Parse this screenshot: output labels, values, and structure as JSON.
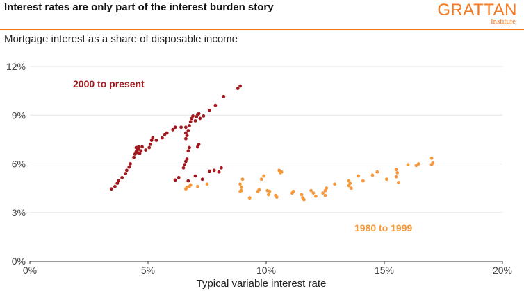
{
  "header": {
    "title": "Interest rates are only part of the interest burden story",
    "brand_name": "GRATTAN",
    "brand_sub": "Institute",
    "subtitle": "Mortgage interest as a share of disposable income"
  },
  "colors": {
    "accent": "#F47920",
    "recent": "#A1191F",
    "early": "#F6983C"
  },
  "chart_data": {
    "type": "scatter",
    "title": "Mortgage interest as a share of disposable income",
    "xlabel": "Typical variable interest rate",
    "ylabel": "",
    "xlim": [
      0,
      20
    ],
    "ylim": [
      0,
      12
    ],
    "xticks": [
      0,
      5,
      10,
      15,
      20
    ],
    "yticks": [
      0,
      3,
      6,
      9,
      12
    ],
    "xtick_labels": [
      "0%",
      "5%",
      "10%",
      "15%",
      "20%"
    ],
    "ytick_labels": [
      "0%",
      "3%",
      "6%",
      "9%",
      "12%"
    ],
    "grid": true,
    "series": [
      {
        "name": "2000 to present",
        "color": "#A1191F",
        "points": [
          [
            3.45,
            4.45
          ],
          [
            3.6,
            4.6
          ],
          [
            3.7,
            4.8
          ],
          [
            3.75,
            4.95
          ],
          [
            3.9,
            5.15
          ],
          [
            4.05,
            5.4
          ],
          [
            4.1,
            5.6
          ],
          [
            4.2,
            5.8
          ],
          [
            4.25,
            6.0
          ],
          [
            4.4,
            6.4
          ],
          [
            4.45,
            6.6
          ],
          [
            4.5,
            6.75
          ],
          [
            4.55,
            6.9
          ],
          [
            4.6,
            7.05
          ],
          [
            4.5,
            7.0
          ],
          [
            4.55,
            6.7
          ],
          [
            4.65,
            6.65
          ],
          [
            4.7,
            6.8
          ],
          [
            4.75,
            7.05
          ],
          [
            4.6,
            6.9
          ],
          [
            4.9,
            6.85
          ],
          [
            5.05,
            7.0
          ],
          [
            5.1,
            7.2
          ],
          [
            5.15,
            7.45
          ],
          [
            5.2,
            7.6
          ],
          [
            5.35,
            7.45
          ],
          [
            5.6,
            7.6
          ],
          [
            5.7,
            7.8
          ],
          [
            5.8,
            7.9
          ],
          [
            6.05,
            8.1
          ],
          [
            6.15,
            8.25
          ],
          [
            6.4,
            8.25
          ],
          [
            6.6,
            7.55
          ],
          [
            6.65,
            7.75
          ],
          [
            6.7,
            8.05
          ],
          [
            6.75,
            8.35
          ],
          [
            6.8,
            8.6
          ],
          [
            6.85,
            8.8
          ],
          [
            6.9,
            8.95
          ],
          [
            7.0,
            8.65
          ],
          [
            7.05,
            8.9
          ],
          [
            7.1,
            9.05
          ],
          [
            7.15,
            9.1
          ],
          [
            7.2,
            8.8
          ],
          [
            7.35,
            8.95
          ],
          [
            7.6,
            9.3
          ],
          [
            7.85,
            9.6
          ],
          [
            8.2,
            10.15
          ],
          [
            8.8,
            10.65
          ],
          [
            8.9,
            10.8
          ],
          [
            6.55,
            5.95
          ],
          [
            6.6,
            6.15
          ],
          [
            6.65,
            6.3
          ],
          [
            6.5,
            5.75
          ],
          [
            6.3,
            5.15
          ],
          [
            6.15,
            5.0
          ],
          [
            6.7,
            6.8
          ],
          [
            6.75,
            7.0
          ],
          [
            7.1,
            7.05
          ],
          [
            7.15,
            7.2
          ],
          [
            6.6,
            7.9
          ],
          [
            6.6,
            8.25
          ],
          [
            7.0,
            5.25
          ],
          [
            7.3,
            5.05
          ],
          [
            7.6,
            5.55
          ],
          [
            7.8,
            5.6
          ],
          [
            8.0,
            5.5
          ],
          [
            8.1,
            5.75
          ],
          [
            6.7,
            4.95
          ]
        ]
      },
      {
        "name": "1980 to 1999",
        "color": "#F6983C",
        "points": [
          [
            6.6,
            4.45
          ],
          [
            6.65,
            4.55
          ],
          [
            6.75,
            4.6
          ],
          [
            6.8,
            4.7
          ],
          [
            7.1,
            4.6
          ],
          [
            7.5,
            4.75
          ],
          [
            8.9,
            4.75
          ],
          [
            8.95,
            4.55
          ],
          [
            8.9,
            4.3
          ],
          [
            8.95,
            4.35
          ],
          [
            9.0,
            5.05
          ],
          [
            9.3,
            3.9
          ],
          [
            9.65,
            4.3
          ],
          [
            9.7,
            4.4
          ],
          [
            9.8,
            5.05
          ],
          [
            9.9,
            5.25
          ],
          [
            10.05,
            4.35
          ],
          [
            10.1,
            4.1
          ],
          [
            10.15,
            4.3
          ],
          [
            10.4,
            4.05
          ],
          [
            10.45,
            3.95
          ],
          [
            10.55,
            5.6
          ],
          [
            10.6,
            5.45
          ],
          [
            10.65,
            5.5
          ],
          [
            11.1,
            4.2
          ],
          [
            11.15,
            4.3
          ],
          [
            11.5,
            4.1
          ],
          [
            11.55,
            3.9
          ],
          [
            11.6,
            3.8
          ],
          [
            11.9,
            4.35
          ],
          [
            12.0,
            4.2
          ],
          [
            12.1,
            4.0
          ],
          [
            12.4,
            4.2
          ],
          [
            12.5,
            4.35
          ],
          [
            12.55,
            4.5
          ],
          [
            12.5,
            4.05
          ],
          [
            12.9,
            4.75
          ],
          [
            13.5,
            4.95
          ],
          [
            13.55,
            4.8
          ],
          [
            13.5,
            4.65
          ],
          [
            13.6,
            4.5
          ],
          [
            13.9,
            5.25
          ],
          [
            14.1,
            4.95
          ],
          [
            14.5,
            5.3
          ],
          [
            14.7,
            5.5
          ],
          [
            15.1,
            5.05
          ],
          [
            15.5,
            5.65
          ],
          [
            15.55,
            5.45
          ],
          [
            15.5,
            5.2
          ],
          [
            15.6,
            4.85
          ],
          [
            16.0,
            5.95
          ],
          [
            16.35,
            5.9
          ],
          [
            16.45,
            6.0
          ],
          [
            17.0,
            6.35
          ],
          [
            17.05,
            6.05
          ],
          [
            17.0,
            5.95
          ]
        ]
      }
    ],
    "annotations": [
      {
        "text": "2000 to present",
        "series": 0
      },
      {
        "text": "1980 to 1999",
        "series": 1
      }
    ]
  }
}
